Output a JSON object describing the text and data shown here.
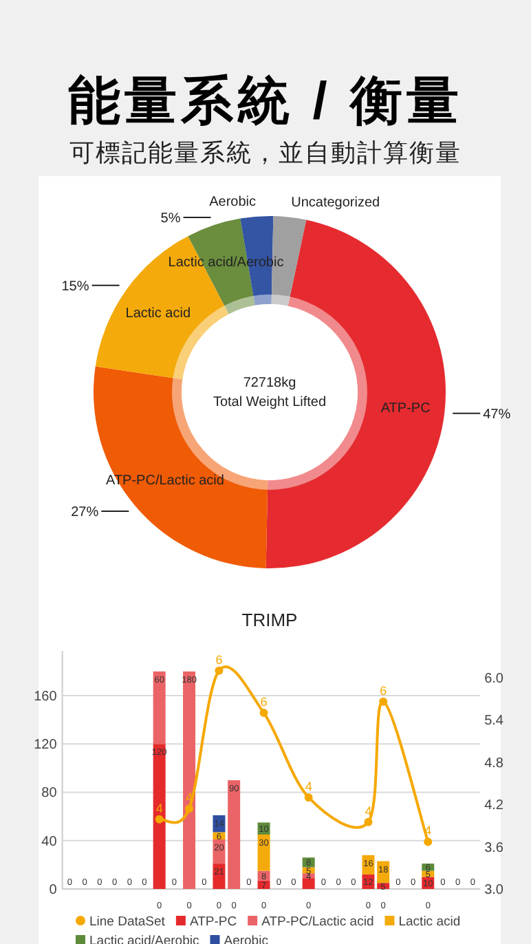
{
  "chart_data": [
    {
      "type": "donut",
      "title": "能量系統 / 衡量",
      "subtitle": "可標記能量系統，並自動計算衡量",
      "categories": [
        "ATP-PC",
        "ATP-PC/Lactic acid",
        "Lactic acid",
        "Lactic acid/Aerobic",
        "Aerobic",
        "Uncategorized"
      ],
      "values": [
        47,
        27,
        15,
        5,
        3,
        3
      ],
      "colors": [
        "#e52b2f",
        "#f05b06",
        "#f4aa0a",
        "#6a8d3e",
        "#3454a4",
        "#a0a0a0"
      ],
      "value_labels": [
        "47%",
        "27%",
        "15%",
        "5%",
        null,
        null
      ],
      "annotations": [
        "72718kg",
        "Total Weight Lifted"
      ]
    },
    {
      "type": "bar",
      "title": "TRIMP",
      "stacked": true,
      "legend": "bottom",
      "grid": "y",
      "categories": [
        null,
        null,
        null,
        null,
        null,
        null,
        null,
        null,
        null,
        null,
        null,
        null,
        null,
        null,
        null,
        null,
        null,
        null,
        null,
        null,
        null,
        null,
        null,
        null,
        null,
        null,
        null,
        null
      ],
      "ylim": [
        0,
        197
      ],
      "yticks": [
        0,
        40,
        80,
        120,
        160
      ],
      "y2lim": [
        3.0,
        6.38
      ],
      "y2ticks": [
        {
          "value": 3.0,
          "label": "3.0"
        },
        {
          "value": 3.6,
          "label": "3.6"
        },
        {
          "value": 4.2,
          "label": "4.2"
        },
        {
          "value": 4.8,
          "label": "4.8"
        },
        {
          "value": 5.4,
          "label": "5.4"
        },
        {
          "value": 6.0,
          "label": "6.0"
        }
      ],
      "series": [
        {
          "name": "Line DataSet",
          "type": "line",
          "axis": "y2",
          "color": "#f5a800",
          "marker": "circle",
          "values": [
            null,
            null,
            null,
            null,
            null,
            null,
            3.99,
            null,
            4.14,
            null,
            6.1,
            null,
            null,
            5.5,
            null,
            null,
            4.3,
            null,
            null,
            null,
            3.95,
            5.66,
            null,
            null,
            3.67,
            null,
            null,
            null
          ],
          "value_labels": [
            null,
            null,
            null,
            null,
            null,
            null,
            "4",
            null,
            "4",
            null,
            "6",
            null,
            null,
            "6",
            null,
            null,
            "4",
            null,
            null,
            null,
            "4",
            "6",
            null,
            null,
            "4",
            null,
            null,
            null
          ]
        },
        {
          "color": "#e52a2c",
          "values": [
            null,
            null,
            null,
            null,
            null,
            null,
            0,
            null,
            0,
            null,
            0,
            0,
            null,
            0,
            null,
            null,
            0,
            null,
            null,
            null,
            0,
            0,
            null,
            null,
            0,
            null,
            null,
            null
          ],
          "value_labels": [
            null,
            null,
            null,
            null,
            null,
            null,
            "0",
            null,
            "0",
            null,
            "0",
            "0",
            null,
            "0",
            null,
            null,
            "0",
            null,
            null,
            null,
            "0",
            "0",
            null,
            null,
            "0",
            null,
            null,
            null
          ]
        },
        {
          "name": "ATP-PC",
          "color": "#e52a2c",
          "values": [
            0,
            0,
            0,
            0,
            0,
            0,
            120,
            0,
            0,
            0,
            21,
            0,
            0,
            7,
            0,
            0,
            9,
            0,
            0,
            0,
            12,
            5,
            0,
            0,
            10,
            0,
            0,
            0
          ],
          "value_labels": [
            "0",
            "0",
            "0",
            "0",
            "0",
            "0",
            "120",
            "0",
            null,
            "0",
            "21",
            null,
            "0",
            "7",
            "0",
            "0",
            null,
            "0",
            "0",
            "0",
            "12",
            "5",
            "0",
            "0",
            "10",
            "0",
            "0",
            "0"
          ]
        },
        {
          "name": "ATP-PC/Lactic acid",
          "color": "#ea6467",
          "values": [
            0,
            0,
            0,
            0,
            0,
            0,
            60,
            0,
            180,
            0,
            20,
            90,
            0,
            8,
            0,
            0,
            4,
            0,
            0,
            0,
            0,
            0,
            0,
            0,
            0,
            0,
            0,
            0
          ],
          "value_labels": [
            null,
            null,
            null,
            null,
            null,
            null,
            "60",
            null,
            "180",
            null,
            "20",
            "90",
            null,
            "8",
            null,
            null,
            "4",
            null,
            null,
            null,
            null,
            null,
            null,
            null,
            null,
            null,
            null,
            null
          ]
        },
        {
          "name": "Lactic acid",
          "color": "#f4aa0a",
          "values": [
            0,
            0,
            0,
            0,
            0,
            0,
            0,
            0,
            0,
            0,
            6,
            0,
            0,
            30,
            0,
            0,
            5,
            0,
            0,
            0,
            16,
            18,
            0,
            0,
            5,
            0,
            0,
            0
          ],
          "value_labels": [
            null,
            null,
            null,
            null,
            null,
            null,
            null,
            null,
            null,
            null,
            "6",
            null,
            null,
            "30",
            null,
            null,
            "5",
            null,
            null,
            null,
            "16",
            "18",
            null,
            null,
            "5",
            null,
            null,
            null
          ]
        },
        {
          "name": "Lactic acid/Aerobic",
          "color": "#5e8b3a",
          "values": [
            0,
            0,
            0,
            0,
            0,
            0,
            0,
            0,
            0,
            0,
            0,
            0,
            0,
            10,
            0,
            0,
            8,
            0,
            0,
            0,
            0,
            0,
            0,
            0,
            6,
            0,
            0,
            0
          ],
          "value_labels": [
            null,
            null,
            null,
            null,
            null,
            null,
            null,
            null,
            null,
            null,
            null,
            null,
            null,
            "10",
            null,
            null,
            "8",
            null,
            null,
            null,
            null,
            null,
            null,
            null,
            "6",
            null,
            null,
            null
          ]
        },
        {
          "name": "Aerobic",
          "color": "#2f4ea0",
          "values": [
            0,
            0,
            0,
            0,
            0,
            0,
            0,
            0,
            0,
            0,
            14,
            0,
            0,
            0,
            0,
            0,
            0,
            0,
            0,
            0,
            0,
            0,
            0,
            0,
            0,
            0,
            0,
            0
          ],
          "value_labels": [
            null,
            null,
            null,
            null,
            null,
            null,
            null,
            null,
            null,
            null,
            "14",
            null,
            null,
            null,
            null,
            null,
            null,
            null,
            null,
            null,
            null,
            null,
            null,
            null,
            null,
            null,
            null,
            null
          ]
        }
      ]
    }
  ]
}
